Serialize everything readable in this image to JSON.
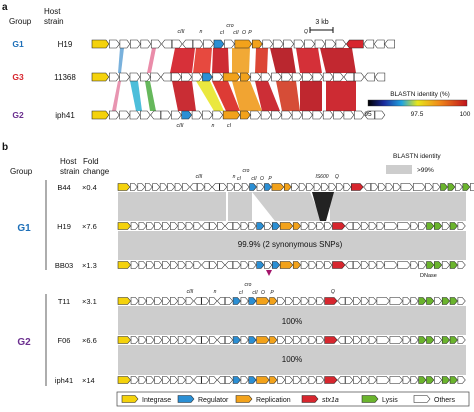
{
  "panel_a": {
    "label": "a",
    "header": {
      "group": "Group",
      "host": "Host",
      "strain": "strain"
    },
    "rows": [
      {
        "group": "G1",
        "group_color": "#1d6fb8",
        "strain": "H19"
      },
      {
        "group": "G3",
        "group_color": "#d7262e",
        "strain": "11368"
      },
      {
        "group": "G2",
        "group_color": "#6b2f8f",
        "strain": "iph41"
      }
    ],
    "scale_bar": "3 kb",
    "gene_labels": [
      "cIII",
      "n",
      "cro",
      "cI",
      "cII",
      "O",
      "P",
      "Q",
      "cIII",
      "n",
      "cI"
    ],
    "legend_title": "BLASTN identity (%)",
    "legend_ticks": [
      "95",
      "97.5",
      "100"
    ]
  },
  "panel_b": {
    "label": "b",
    "header": {
      "group": "Group",
      "host": "Host",
      "strain": "strain",
      "fold": "Fold",
      "change": "change"
    },
    "groups": [
      {
        "name": "G1",
        "color": "#1d6fb8"
      },
      {
        "name": "G2",
        "color": "#6b2f8f"
      }
    ],
    "rows": [
      {
        "strain": "B44",
        "fold": "×0.4"
      },
      {
        "strain": "H19",
        "fold": "×7.6"
      },
      {
        "strain": "BB03",
        "fold": "×1.3"
      },
      {
        "strain": "T11",
        "fold": "×3.1"
      },
      {
        "strain": "F06",
        "fold": "×6.6"
      },
      {
        "strain": "iph41",
        "fold": "×14"
      }
    ],
    "identity_notes": [
      "99.9% (2 synonymous SNPs)",
      "100%",
      "100%"
    ],
    "gene_labels_g1": [
      "cIII",
      "n",
      "cro",
      "cI",
      "cII",
      "O",
      "P",
      "IS600",
      "Q"
    ],
    "gene_labels_g2": [
      "cIII",
      "n",
      "cro",
      "cI",
      "cII",
      "O",
      "P",
      "Q"
    ],
    "insertion_label": "DNase",
    "legend_title": "BLASTN identity",
    "legend_item": ">99%",
    "legend": [
      {
        "label": "Integrase",
        "color": "#f4d20c",
        "italic": false
      },
      {
        "label": "Regulator",
        "color": "#2b8fd4",
        "italic": false
      },
      {
        "label": "Replication",
        "color": "#f2a21b",
        "italic": false
      },
      {
        "label": "stx1a",
        "color": "#d7262e",
        "italic": true
      },
      {
        "label": "Lysis",
        "color": "#6ab42d",
        "italic": false
      },
      {
        "label": "Others",
        "color": "#ffffff",
        "italic": false
      }
    ]
  }
}
